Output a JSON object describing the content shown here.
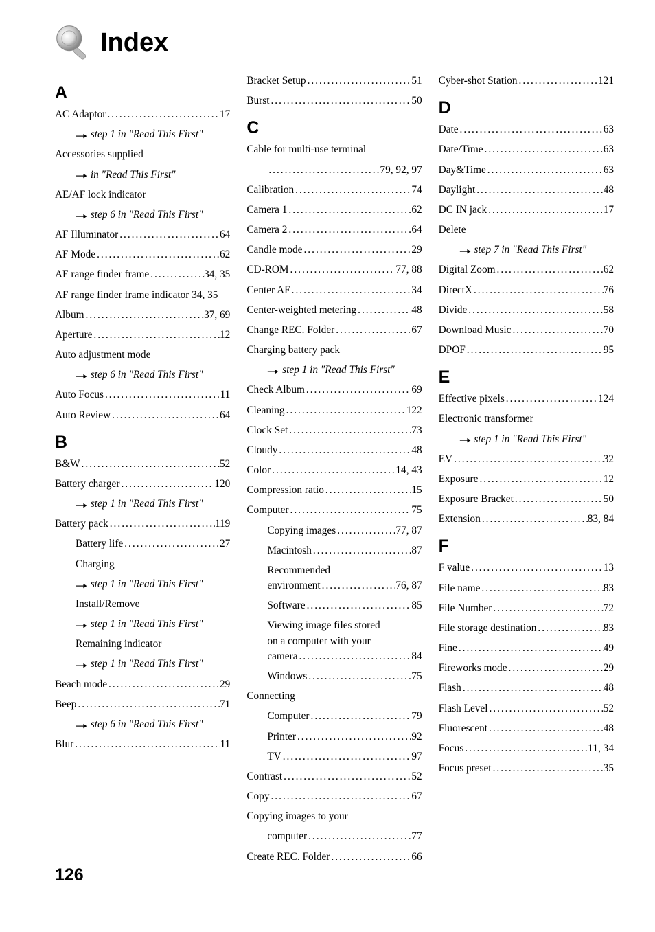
{
  "typography": {
    "body_font": "Georgia/Times",
    "heading_font": "Arial/Helvetica",
    "title_fontsize": 38,
    "letter_fontsize": 24,
    "entry_fontsize": 15,
    "page_number_fontsize": 24,
    "text_color": "#000000",
    "background_color": "#ffffff"
  },
  "title": "Index",
  "page_number": "126",
  "reference_prefix": "→",
  "read_this_first_1": "step 1 in \"Read This First\"",
  "read_this_first_6": "step 6 in \"Read This First\"",
  "read_this_first_7": "step 7 in \"Read This First\"",
  "in_read_first": "in \"Read This First\"",
  "columns": [
    {
      "sections": [
        {
          "letter": "A",
          "entries": [
            {
              "type": "dots",
              "label": "AC Adaptor",
              "page": "17"
            },
            {
              "type": "ref",
              "ref": "step 1 in \"Read This First\""
            },
            {
              "type": "plain",
              "label": "Accessories supplied"
            },
            {
              "type": "ref",
              "ref": "in \"Read This First\""
            },
            {
              "type": "plain",
              "label": "AE/AF lock indicator"
            },
            {
              "type": "ref",
              "ref": "step 6 in \"Read This First\""
            },
            {
              "type": "dots",
              "label": "AF Illuminator",
              "page": "64"
            },
            {
              "type": "dots",
              "label": "AF Mode",
              "page": "62"
            },
            {
              "type": "dots",
              "label": "AF range finder frame",
              "page": "34, 35"
            },
            {
              "type": "plain",
              "label": "AF range finder frame indicator 34, 35"
            },
            {
              "type": "dots",
              "label": "Album",
              "page": "37, 69"
            },
            {
              "type": "dots",
              "label": "Aperture",
              "page": "12"
            },
            {
              "type": "plain",
              "label": "Auto adjustment mode"
            },
            {
              "type": "ref",
              "ref": "step 6 in \"Read This First\""
            },
            {
              "type": "dots",
              "label": "Auto Focus",
              "page": "11"
            },
            {
              "type": "dots",
              "label": "Auto Review",
              "page": "64"
            }
          ]
        },
        {
          "letter": "B",
          "entries": [
            {
              "type": "dots",
              "label": "B&W",
              "page": "52"
            },
            {
              "type": "dots",
              "label": "Battery charger",
              "page": "120"
            },
            {
              "type": "ref",
              "ref": "step 1 in \"Read This First\""
            },
            {
              "type": "dots",
              "label": "Battery pack",
              "page": "119"
            },
            {
              "type": "subdots",
              "label": "Battery life",
              "page": "27"
            },
            {
              "type": "subplain",
              "label": "Charging"
            },
            {
              "type": "subref",
              "ref": "step 1 in \"Read This First\""
            },
            {
              "type": "subplain",
              "label": "Install/Remove"
            },
            {
              "type": "subref",
              "ref": "step 1 in \"Read This First\""
            },
            {
              "type": "subplain",
              "label": "Remaining indicator"
            },
            {
              "type": "subref",
              "ref": "step 1 in \"Read This First\""
            },
            {
              "type": "dots",
              "label": "Beach mode",
              "page": "29"
            },
            {
              "type": "dots",
              "label": "Beep",
              "page": "71"
            },
            {
              "type": "ref",
              "ref": "step 6 in \"Read This First\""
            },
            {
              "type": "dots",
              "label": "Blur",
              "page": "11"
            }
          ]
        }
      ]
    },
    {
      "sections": [
        {
          "letter": "",
          "entries": [
            {
              "type": "dots",
              "label": "Bracket Setup",
              "page": "51"
            },
            {
              "type": "dots",
              "label": "Burst",
              "page": "50"
            }
          ]
        },
        {
          "letter": "C",
          "entries": [
            {
              "type": "plain",
              "label": "Cable for multi-use terminal"
            },
            {
              "type": "subdots",
              "label": "",
              "page": "79, 92, 97"
            },
            {
              "type": "dots",
              "label": "Calibration",
              "page": "74"
            },
            {
              "type": "dots",
              "label": "Camera 1",
              "page": "62"
            },
            {
              "type": "dots",
              "label": "Camera 2",
              "page": "64"
            },
            {
              "type": "dots",
              "label": "Candle mode",
              "page": "29"
            },
            {
              "type": "dots",
              "label": "CD-ROM",
              "page": "77, 88"
            },
            {
              "type": "dots",
              "label": "Center AF",
              "page": "34"
            },
            {
              "type": "dots",
              "label": "Center-weighted metering",
              "page": "48"
            },
            {
              "type": "dots",
              "label": "Change REC. Folder",
              "page": "67"
            },
            {
              "type": "plain",
              "label": "Charging battery pack"
            },
            {
              "type": "ref",
              "ref": "step 1 in \"Read This First\""
            },
            {
              "type": "dots",
              "label": "Check Album",
              "page": "69"
            },
            {
              "type": "dots",
              "label": "Cleaning",
              "page": "122"
            },
            {
              "type": "dots",
              "label": "Clock Set",
              "page": "73"
            },
            {
              "type": "dots",
              "label": "Cloudy",
              "page": "48"
            },
            {
              "type": "dots",
              "label": "Color",
              "page": "14, 43"
            },
            {
              "type": "dots",
              "label": "Compression ratio",
              "page": "15"
            },
            {
              "type": "dots",
              "label": "Computer",
              "page": "75"
            },
            {
              "type": "subdots",
              "label": "Copying images",
              "page": "77, 87"
            },
            {
              "type": "subdots",
              "label": "Macintosh",
              "page": "87"
            },
            {
              "type": "subplainbreak",
              "label1": "Recommended",
              "label2": "environment",
              "page": "76, 87"
            },
            {
              "type": "subdots",
              "label": "Software",
              "page": "85"
            },
            {
              "type": "subplainbreak3",
              "label1": "Viewing image files stored",
              "label2": "on a computer with your",
              "label3": "camera",
              "page": "84"
            },
            {
              "type": "subdots",
              "label": "Windows",
              "page": "75"
            },
            {
              "type": "plain",
              "label": "Connecting"
            },
            {
              "type": "subdots",
              "label": "Computer",
              "page": "79"
            },
            {
              "type": "subdots",
              "label": "Printer",
              "page": "92"
            },
            {
              "type": "subdots",
              "label": "TV",
              "page": "97"
            },
            {
              "type": "dots",
              "label": "Contrast",
              "page": "52"
            },
            {
              "type": "dots",
              "label": "Copy",
              "page": "67"
            },
            {
              "type": "plain",
              "label": "Copying images to your"
            },
            {
              "type": "subdots",
              "label": "computer",
              "page": "77"
            },
            {
              "type": "dots",
              "label": "Create REC. Folder",
              "page": "66"
            }
          ]
        }
      ]
    },
    {
      "sections": [
        {
          "letter": "",
          "entries": [
            {
              "type": "dots",
              "label": "Cyber-shot Station",
              "page": "121"
            }
          ]
        },
        {
          "letter": "D",
          "entries": [
            {
              "type": "dots",
              "label": "Date",
              "page": "63"
            },
            {
              "type": "dots",
              "label": "Date/Time",
              "page": "63"
            },
            {
              "type": "dots",
              "label": "Day&Time",
              "page": "63"
            },
            {
              "type": "dots",
              "label": "Daylight",
              "page": "48"
            },
            {
              "type": "dots",
              "label": "DC IN jack",
              "page": "17"
            },
            {
              "type": "plain",
              "label": "Delete"
            },
            {
              "type": "ref",
              "ref": "step 7 in \"Read This First\""
            },
            {
              "type": "dots",
              "label": "Digital Zoom",
              "page": "62"
            },
            {
              "type": "dots",
              "label": "DirectX",
              "page": "76"
            },
            {
              "type": "dots",
              "label": "Divide",
              "page": "58"
            },
            {
              "type": "dots",
              "label": "Download Music",
              "page": "70"
            },
            {
              "type": "dots",
              "label": "DPOF",
              "page": "95"
            }
          ]
        },
        {
          "letter": "E",
          "entries": [
            {
              "type": "dots",
              "label": "Effective pixels",
              "page": "124"
            },
            {
              "type": "plain",
              "label": "Electronic transformer"
            },
            {
              "type": "ref",
              "ref": "step 1 in \"Read This First\""
            },
            {
              "type": "dots",
              "label": "EV",
              "page": "32"
            },
            {
              "type": "dots",
              "label": "Exposure",
              "page": "12"
            },
            {
              "type": "dots",
              "label": "Exposure Bracket",
              "page": "50"
            },
            {
              "type": "dots",
              "label": "Extension",
              "page": "83, 84"
            }
          ]
        },
        {
          "letter": "F",
          "entries": [
            {
              "type": "dots",
              "label": "F value",
              "page": "13"
            },
            {
              "type": "dots",
              "label": "File name",
              "page": "83"
            },
            {
              "type": "dots",
              "label": "File Number",
              "page": "72"
            },
            {
              "type": "dots",
              "label": "File storage destination",
              "page": "83"
            },
            {
              "type": "dots",
              "label": "Fine",
              "page": "49"
            },
            {
              "type": "dots",
              "label": "Fireworks mode",
              "page": "29"
            },
            {
              "type": "dots",
              "label": "Flash",
              "page": "48"
            },
            {
              "type": "dots",
              "label": "Flash Level",
              "page": "52"
            },
            {
              "type": "dots",
              "label": "Fluorescent",
              "page": "48"
            },
            {
              "type": "dots",
              "label": "Focus",
              "page": "11, 34"
            },
            {
              "type": "dots",
              "label": "Focus preset",
              "page": "35"
            }
          ]
        }
      ]
    }
  ]
}
